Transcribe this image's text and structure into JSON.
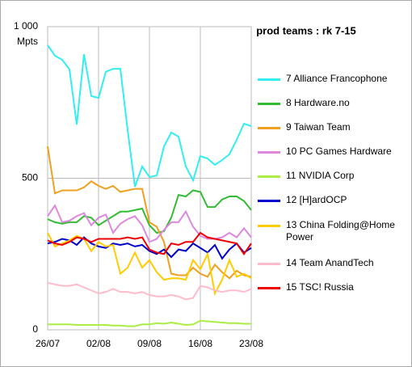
{
  "chart_data": {
    "type": "line",
    "title": "prod teams :  rk 7-15",
    "y_label": "Mpts",
    "categories": [
      "26/07",
      null,
      null,
      null,
      null,
      null,
      null,
      "02/08",
      null,
      null,
      null,
      null,
      null,
      null,
      "09/08",
      null,
      null,
      null,
      null,
      null,
      null,
      "16/08",
      null,
      null,
      null,
      null,
      null,
      null,
      "23/08"
    ],
    "ylim": [
      0,
      1000
    ],
    "yticks": [
      0,
      500,
      {
        "value": 1000,
        "label": "1 000"
      }
    ],
    "grid": true,
    "legend": "right",
    "series": [
      {
        "name": "7 Alliance Francophone",
        "color": "#33eef0",
        "values": [
          939,
          904,
          891,
          859,
          677,
          909,
          771,
          765,
          851,
          861,
          861,
          659,
          472,
          539,
          504,
          509,
          605,
          651,
          637,
          539,
          493,
          573,
          565,
          544,
          560,
          579,
          627,
          680,
          672
        ]
      },
      {
        "name": "8 Hardware.no",
        "color": "#33bb33",
        "values": [
          365,
          355,
          350,
          355,
          355,
          375,
          370,
          345,
          360,
          375,
          390,
          390,
          395,
          400,
          345,
          320,
          325,
          370,
          445,
          440,
          460,
          455,
          405,
          405,
          430,
          440,
          440,
          425,
          395
        ]
      },
      {
        "name": "9 Taiwan Team",
        "color": "#f0a020",
        "values": [
          605,
          450,
          460,
          460,
          460,
          470,
          490,
          475,
          465,
          475,
          455,
          460,
          465,
          465,
          355,
          340,
          290,
          185,
          180,
          180,
          205,
          185,
          175,
          215,
          190,
          170,
          195,
          180,
          175
        ]
      },
      {
        "name": "10 PC Games Hardware",
        "color": "#dd88dd",
        "values": [
          375,
          410,
          355,
          360,
          375,
          385,
          345,
          370,
          380,
          320,
          350,
          365,
          375,
          345,
          290,
          300,
          330,
          355,
          355,
          390,
          340,
          310,
          300,
          300,
          305,
          320,
          305,
          335,
          305
        ]
      },
      {
        "name": "11 NVIDIA Corp",
        "color": "#aaee44",
        "values": [
          18,
          18,
          18,
          18,
          16,
          16,
          16,
          16,
          16,
          14,
          14,
          12,
          12,
          18,
          18,
          22,
          20,
          24,
          20,
          16,
          18,
          30,
          28,
          26,
          24,
          22,
          22,
          20,
          20
        ]
      },
      {
        "name": "12 [H]ardOCP",
        "color": "#0000cc",
        "values": [
          285,
          290,
          300,
          295,
          280,
          305,
          285,
          275,
          270,
          285,
          280,
          285,
          275,
          280,
          260,
          250,
          265,
          240,
          265,
          260,
          285,
          270,
          255,
          280,
          235,
          265,
          285,
          255,
          270
        ]
      },
      {
        "name": "13 China Folding@Home Power",
        "color": "#ffcc00",
        "values": [
          320,
          275,
          285,
          295,
          310,
          300,
          260,
          290,
          275,
          280,
          185,
          205,
          255,
          205,
          230,
          190,
          165,
          170,
          170,
          165,
          230,
          200,
          250,
          120,
          165,
          230,
          175,
          185,
          170
        ]
      },
      {
        "name": "14 Team AnandTech",
        "color": "#ffbbcc",
        "values": [
          155,
          150,
          145,
          145,
          150,
          140,
          130,
          120,
          125,
          135,
          125,
          125,
          120,
          125,
          115,
          110,
          110,
          115,
          110,
          100,
          105,
          145,
          140,
          130,
          125,
          130,
          130,
          125,
          135
        ]
      },
      {
        "name": "15 TSC! Russia",
        "color": "#ee0000",
        "values": [
          295,
          285,
          280,
          290,
          305,
          300,
          290,
          300,
          300,
          300,
          300,
          305,
          300,
          305,
          265,
          255,
          250,
          285,
          280,
          290,
          290,
          320,
          305,
          300,
          295,
          290,
          285,
          250,
          285
        ]
      }
    ]
  }
}
